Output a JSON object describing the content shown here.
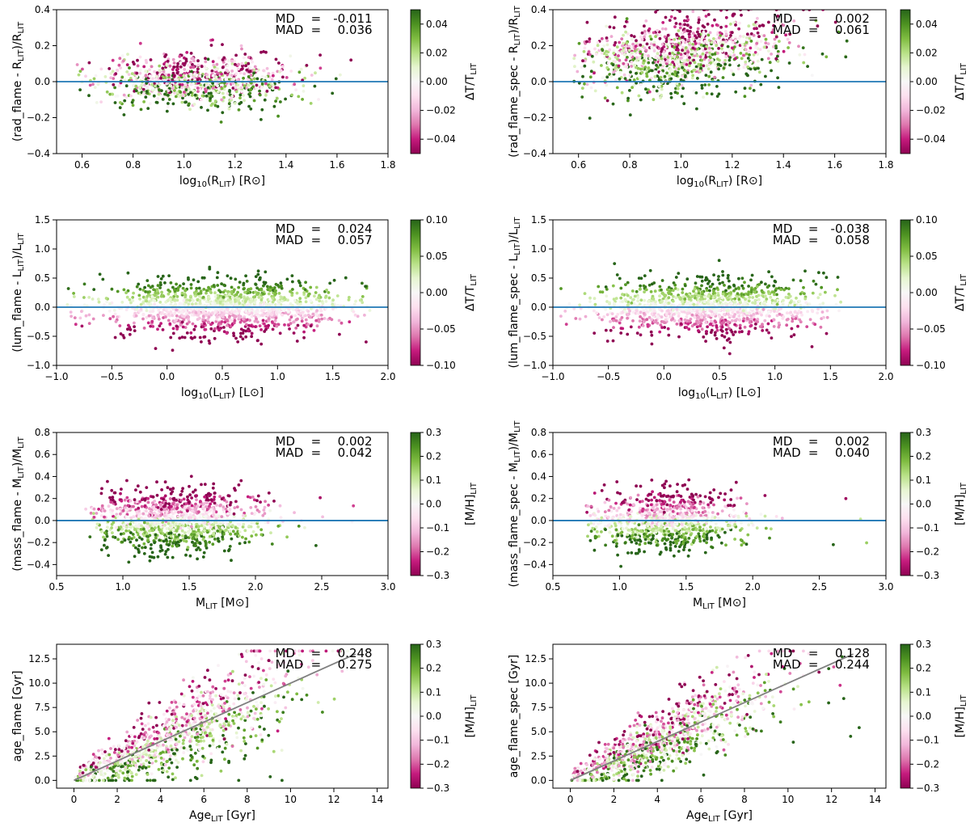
{
  "colors": {
    "reference_line": "#1f77b4",
    "identity_line": "#808080",
    "colormap": [
      "#8e0152",
      "#c51b7d",
      "#de77ae",
      "#f1b6da",
      "#fde0ef",
      "#f7f7f7",
      "#e6f5d0",
      "#b8e186",
      "#7fbc41",
      "#4d9221",
      "#276419"
    ]
  },
  "chart_data": [
    {
      "type": "scatter",
      "name": "rad-flame",
      "xlabel": "log10(R_LIT) [R_sun]",
      "xlabel_main": "log",
      "xlabel_sub": "10",
      "xlabel_rest": "(R",
      "xlabel_sub2": "LIT",
      "xlabel_tail": ") [R⊙]",
      "ylabel": "(rad_flame - R_LIT)/R_LIT",
      "ylabel_main": "(rad_flame - R",
      "ylabel_sub": "LIT",
      "ylabel_rest": ")/R",
      "ylabel_sub2": "LIT",
      "xlim": [
        0.5,
        1.8
      ],
      "ylim": [
        -0.4,
        0.4
      ],
      "xticks": [
        0.6,
        0.8,
        1.0,
        1.2,
        1.4,
        1.6,
        1.8
      ],
      "xtick_labels": [
        "0.6",
        "0.8",
        "1.0",
        "1.2",
        "1.4",
        "1.6",
        "1.8"
      ],
      "yticks": [
        -0.4,
        -0.2,
        0.0,
        0.2,
        0.4
      ],
      "ytick_labels": [
        "−0.4",
        "−0.2",
        "0.0",
        "0.2",
        "0.4"
      ],
      "reference_line": {
        "kind": "horizontal",
        "y": 0.0
      },
      "stats": {
        "md_label": "MD",
        "md_eq": "=",
        "md_value": "-0.011",
        "mad_label": "MAD",
        "mad_eq": "=",
        "mad_value": "0.036"
      },
      "colorbar": {
        "label": "ΔT/T_LIT",
        "label_main": "ΔT/T",
        "label_sub": "LIT",
        "range": [
          -0.05,
          0.05
        ],
        "ticks": [
          -0.04,
          -0.02,
          0.0,
          0.02,
          0.04
        ],
        "tick_labels": [
          "−0.04",
          "−0.02",
          "0.00",
          "0.02",
          "0.04"
        ]
      },
      "distribution": {
        "n": 900,
        "x_center": 1.05,
        "x_spread": 0.2,
        "x_range": [
          0.58,
          1.7
        ],
        "color_mode": "inverse",
        "color_spread": 0.04,
        "color_gain": 0.42,
        "base": 0.0,
        "slope": 0.0,
        "y_noise": 0.06,
        "y_range": [
          -0.4,
          0.4
        ],
        "seed": 11
      }
    },
    {
      "type": "scatter",
      "name": "rad-flame-spec",
      "xlabel": "log10(R_LIT) [R_sun]",
      "xlabel_main": "log",
      "xlabel_sub": "10",
      "xlabel_rest": "(R",
      "xlabel_sub2": "LIT",
      "xlabel_tail": ") [R⊙]",
      "ylabel": "(rad_flame_spec - R_LIT)/R_LIT",
      "ylabel_main": "(rad_flame_spec - R",
      "ylabel_sub": "LIT",
      "ylabel_rest": ")/R",
      "ylabel_sub2": "LIT",
      "xlim": [
        0.5,
        1.8
      ],
      "ylim": [
        -0.4,
        0.4
      ],
      "xticks": [
        0.6,
        0.8,
        1.0,
        1.2,
        1.4,
        1.6,
        1.8
      ],
      "xtick_labels": [
        "0.6",
        "0.8",
        "1.0",
        "1.2",
        "1.4",
        "1.6",
        "1.8"
      ],
      "yticks": [
        -0.4,
        -0.2,
        0.0,
        0.2,
        0.4
      ],
      "ytick_labels": [
        "−0.4",
        "−0.2",
        "0.0",
        "0.2",
        "0.4"
      ],
      "reference_line": {
        "kind": "horizontal",
        "y": 0.0
      },
      "stats": {
        "md_label": "MD",
        "md_eq": "=",
        "md_value": "0.002",
        "mad_label": "MAD",
        "mad_eq": "=",
        "mad_value": "0.061"
      },
      "colorbar": {
        "label": "ΔT/T_LIT",
        "label_main": "ΔT/T",
        "label_sub": "LIT",
        "range": [
          -0.05,
          0.05
        ],
        "ticks": [
          -0.04,
          -0.02,
          0.0,
          0.02,
          0.04
        ],
        "tick_labels": [
          "−0.04",
          "−0.02",
          "0.00",
          "0.02",
          "0.04"
        ]
      },
      "distribution": {
        "n": 1100,
        "x_center": 1.0,
        "x_spread": 0.2,
        "x_range": [
          0.58,
          1.65
        ],
        "color_mode": "inverse",
        "color_spread": 0.04,
        "color_gain": 0.6,
        "base": 0.15,
        "slope": 0.35,
        "y_noise": 0.08,
        "y_range": [
          -0.4,
          0.4
        ],
        "seed": 23
      }
    },
    {
      "type": "scatter",
      "name": "lum-flame",
      "xlabel": "log10(L_LIT) [L_sun]",
      "xlabel_main": "log",
      "xlabel_sub": "10",
      "xlabel_rest": "(L",
      "xlabel_sub2": "LIT",
      "xlabel_tail": ") [L⊙]",
      "ylabel": "(lum_flame - L_LIT)/L_LIT",
      "ylabel_main": "(lum_flame - L",
      "ylabel_sub": "LIT",
      "ylabel_rest": ")/L",
      "ylabel_sub2": "LIT",
      "xlim": [
        -1.0,
        2.0
      ],
      "ylim": [
        -1.0,
        1.5
      ],
      "xticks": [
        -1.0,
        -0.5,
        0.0,
        0.5,
        1.0,
        1.5,
        2.0
      ],
      "xtick_labels": [
        "−1.0",
        "−0.5",
        "0.0",
        "0.5",
        "1.0",
        "1.5",
        "2.0"
      ],
      "yticks": [
        -1.0,
        -0.5,
        0.0,
        0.5,
        1.0,
        1.5
      ],
      "ytick_labels": [
        "−1.0",
        "−0.5",
        "0.0",
        "0.5",
        "1.0",
        "1.5"
      ],
      "reference_line": {
        "kind": "horizontal",
        "y": 0.0
      },
      "stats": {
        "md_label": "MD",
        "md_eq": "=",
        "md_value": "0.024",
        "mad_label": "MAD",
        "mad_eq": "=",
        "mad_value": "0.057"
      },
      "colorbar": {
        "label": "ΔT/T_LIT",
        "label_main": "ΔT/T",
        "label_sub": "LIT",
        "range": [
          -0.1,
          0.1
        ],
        "ticks": [
          -0.1,
          -0.05,
          0.0,
          0.05,
          0.1
        ],
        "tick_labels": [
          "−0.10",
          "−0.05",
          "0.00",
          "0.05",
          "0.10"
        ]
      },
      "distribution": {
        "n": 1300,
        "x_center": 0.55,
        "x_spread": 0.55,
        "x_range": [
          -0.97,
          1.85
        ],
        "color_mode": "direct",
        "color_spread": 0.055,
        "color_gain": 4.0,
        "base": 0.0,
        "slope": 0.0,
        "y_noise": 0.05,
        "y_range": [
          -1.0,
          1.5
        ],
        "seed": 37
      }
    },
    {
      "type": "scatter",
      "name": "lum-flame-spec",
      "xlabel": "log10(L_LIT) [L_sun]",
      "xlabel_main": "log",
      "xlabel_sub": "10",
      "xlabel_rest": "(L",
      "xlabel_sub2": "LIT",
      "xlabel_tail": ") [L⊙]",
      "ylabel": "(lum_flame_spec - L_LIT)/L_LIT",
      "ylabel_main": "(lum_flame_spec - L",
      "ylabel_sub": "LIT",
      "ylabel_rest": ")/L",
      "ylabel_sub2": "LIT",
      "xlim": [
        -1.0,
        2.0
      ],
      "ylim": [
        -1.0,
        1.5
      ],
      "xticks": [
        -1.0,
        -0.5,
        0.0,
        0.5,
        1.0,
        1.5,
        2.0
      ],
      "xtick_labels": [
        "−1.0",
        "−0.5",
        "0.0",
        "0.5",
        "1.0",
        "1.5",
        "2.0"
      ],
      "yticks": [
        -1.0,
        -0.5,
        0.0,
        0.5,
        1.0,
        1.5
      ],
      "ytick_labels": [
        "−1.0",
        "−0.5",
        "0.0",
        "0.5",
        "1.0",
        "1.5"
      ],
      "reference_line": {
        "kind": "horizontal",
        "y": 0.0
      },
      "stats": {
        "md_label": "MD",
        "md_eq": "=",
        "md_value": "-0.038",
        "mad_label": "MAD",
        "mad_eq": "=",
        "mad_value": "0.058"
      },
      "colorbar": {
        "label": "ΔT/T_LIT",
        "label_main": "ΔT/T",
        "label_sub": "LIT",
        "range": [
          -0.1,
          0.1
        ],
        "ticks": [
          -0.1,
          -0.05,
          0.0,
          0.05,
          0.1
        ],
        "tick_labels": [
          "−0.10",
          "−0.05",
          "0.00",
          "0.05",
          "0.10"
        ]
      },
      "distribution": {
        "n": 1200,
        "x_center": 0.4,
        "x_spread": 0.5,
        "x_range": [
          -0.93,
          1.6
        ],
        "color_mode": "direct",
        "color_spread": 0.055,
        "color_gain": 4.0,
        "base": 0.0,
        "slope": 0.0,
        "y_noise": 0.06,
        "y_range": [
          -1.0,
          1.5
        ],
        "seed": 41
      }
    },
    {
      "type": "scatter",
      "name": "mass-flame",
      "xlabel": "M_LIT [M_sun]",
      "xlabel_main": "M",
      "xlabel_sub": "LIT",
      "xlabel_rest": " [M⊙]",
      "xlabel_sub2": "",
      "xlabel_tail": "",
      "ylabel": "(mass_flame - M_LIT)/M_LIT",
      "ylabel_main": "(mass_flame - M",
      "ylabel_sub": "LIT",
      "ylabel_rest": ")/M",
      "ylabel_sub2": "LIT",
      "xlim": [
        0.5,
        3.0
      ],
      "ylim": [
        -0.5,
        0.8
      ],
      "xticks": [
        0.5,
        1.0,
        1.5,
        2.0,
        2.5,
        3.0
      ],
      "xtick_labels": [
        "0.5",
        "1.0",
        "1.5",
        "2.0",
        "2.5",
        "3.0"
      ],
      "yticks": [
        -0.4,
        -0.2,
        0.0,
        0.2,
        0.4,
        0.6,
        0.8
      ],
      "ytick_labels": [
        "−0.4",
        "−0.2",
        "0.0",
        "0.2",
        "0.4",
        "0.6",
        "0.8"
      ],
      "reference_line": {
        "kind": "horizontal",
        "y": 0.0
      },
      "stats": {
        "md_label": "MD",
        "md_eq": "=",
        "md_value": "0.002",
        "mad_label": "MAD",
        "mad_eq": "=",
        "mad_value": "0.042"
      },
      "colorbar": {
        "label": "[M/H]_LIT",
        "label_main": "[M/H]",
        "label_sub": "LIT",
        "range": [
          -0.3,
          0.3
        ],
        "ticks": [
          -0.3,
          -0.2,
          -0.1,
          0.0,
          0.1,
          0.2,
          0.3
        ],
        "tick_labels": [
          "−0.3",
          "−0.2",
          "−0.1",
          "0.0",
          "0.1",
          "0.2",
          "0.3"
        ]
      },
      "distribution": {
        "n": 1100,
        "x_center": 1.4,
        "x_spread": 0.32,
        "x_range": [
          0.72,
          2.9
        ],
        "color_mode": "inverse",
        "color_spread": 0.2,
        "color_gain": 0.25,
        "base": 0.0,
        "slope": 0.0,
        "y_noise": 0.05,
        "y_range": [
          -0.5,
          0.8
        ],
        "seed": 53
      }
    },
    {
      "type": "scatter",
      "name": "mass-flame-spec",
      "xlabel": "M_LIT [M_sun]",
      "xlabel_main": "M",
      "xlabel_sub": "LIT",
      "xlabel_rest": " [M⊙]",
      "xlabel_sub2": "",
      "xlabel_tail": "",
      "ylabel": "(mass_flame_spec - M_LIT)/M_LIT",
      "ylabel_main": "(mass_flame_spec - M",
      "ylabel_sub": "LIT",
      "ylabel_rest": ")/M",
      "ylabel_sub2": "LIT",
      "xlim": [
        0.5,
        3.0
      ],
      "ylim": [
        -0.5,
        0.8
      ],
      "xticks": [
        0.5,
        1.0,
        1.5,
        2.0,
        2.5,
        3.0
      ],
      "xtick_labels": [
        "0.5",
        "1.0",
        "1.5",
        "2.0",
        "2.5",
        "3.0"
      ],
      "yticks": [
        -0.4,
        -0.2,
        0.0,
        0.2,
        0.4,
        0.6,
        0.8
      ],
      "ytick_labels": [
        "−0.4",
        "−0.2",
        "0.0",
        "0.2",
        "0.4",
        "0.6",
        "0.8"
      ],
      "reference_line": {
        "kind": "horizontal",
        "y": 0.0
      },
      "stats": {
        "md_label": "MD",
        "md_eq": "=",
        "md_value": "0.002",
        "mad_label": "MAD",
        "mad_eq": "=",
        "mad_value": "0.040"
      },
      "colorbar": {
        "label": "[M/H]_LIT",
        "label_main": "[M/H]",
        "label_sub": "LIT",
        "range": [
          -0.3,
          0.3
        ],
        "ticks": [
          -0.3,
          -0.2,
          -0.1,
          0.0,
          0.1,
          0.2,
          0.3
        ],
        "tick_labels": [
          "−0.3",
          "−0.2",
          "−0.1",
          "0.0",
          "0.1",
          "0.2",
          "0.3"
        ]
      },
      "distribution": {
        "n": 850,
        "x_center": 1.35,
        "x_spread": 0.28,
        "x_range": [
          0.75,
          2.9
        ],
        "color_mode": "inverse",
        "color_spread": 0.2,
        "color_gain": 0.25,
        "base": 0.0,
        "slope": 0.0,
        "y_noise": 0.05,
        "y_range": [
          -0.5,
          0.8
        ],
        "seed": 67
      }
    },
    {
      "type": "scatter",
      "name": "age-flame",
      "xlabel": "Age_LIT [Gyr]",
      "xlabel_main": "Age",
      "xlabel_sub": "LIT",
      "xlabel_rest": " [Gyr]",
      "xlabel_sub2": "",
      "xlabel_tail": "",
      "ylabel": "age_flame [Gyr]",
      "ylabel_main": "age_flame [Gyr]",
      "ylabel_sub": "",
      "ylabel_rest": "",
      "ylabel_sub2": "",
      "xlim": [
        -0.8,
        14.5
      ],
      "ylim": [
        -0.8,
        14.0
      ],
      "xticks": [
        0,
        2,
        4,
        6,
        8,
        10,
        12,
        14
      ],
      "xtick_labels": [
        "0",
        "2",
        "4",
        "6",
        "8",
        "10",
        "12",
        "14"
      ],
      "yticks": [
        0.0,
        2.5,
        5.0,
        7.5,
        10.0,
        12.5
      ],
      "ytick_labels": [
        "0.0",
        "2.5",
        "5.0",
        "7.5",
        "10.0",
        "12.5"
      ],
      "reference_line": {
        "kind": "identity",
        "from": 0.0,
        "to": 13.0
      },
      "stats": {
        "md_label": "MD",
        "md_eq": "=",
        "md_value": "0.248",
        "mad_label": "MAD",
        "mad_eq": "=",
        "mad_value": "0.275"
      },
      "colorbar": {
        "label": "[M/H]_LIT",
        "label_main": "[M/H]",
        "label_sub": "LIT",
        "range": [
          -0.3,
          0.3
        ],
        "ticks": [
          -0.3,
          -0.2,
          -0.1,
          0.0,
          0.1,
          0.2,
          0.3
        ],
        "tick_labels": [
          "−0.3",
          "−0.2",
          "−0.1",
          "0.0",
          "0.1",
          "0.2",
          "0.3"
        ]
      },
      "distribution": {
        "n": 1000,
        "x_center": 4.5,
        "x_spread": 2.8,
        "x_range": [
          0.05,
          13.5
        ],
        "color_mode": "age",
        "color_spread": 0.2,
        "color_gain": 4.0,
        "base": 0.0,
        "slope": 1.0,
        "y_noise": 0.3,
        "y_range": [
          0.0,
          13.3
        ],
        "seed": 71
      }
    },
    {
      "type": "scatter",
      "name": "age-flame-spec",
      "xlabel": "Age_LIT [Gyr]",
      "xlabel_main": "Age",
      "xlabel_sub": "LIT",
      "xlabel_rest": " [Gyr]",
      "xlabel_sub2": "",
      "xlabel_tail": "",
      "ylabel": "age_flame_spec [Gyr]",
      "ylabel_main": "age_flame_spec [Gyr]",
      "ylabel_sub": "",
      "ylabel_rest": "",
      "ylabel_sub2": "",
      "xlim": [
        -0.8,
        14.5
      ],
      "ylim": [
        -0.8,
        14.0
      ],
      "xticks": [
        0,
        2,
        4,
        6,
        8,
        10,
        12,
        14
      ],
      "xtick_labels": [
        "0",
        "2",
        "4",
        "6",
        "8",
        "10",
        "12",
        "14"
      ],
      "yticks": [
        0.0,
        2.5,
        5.0,
        7.5,
        10.0,
        12.5
      ],
      "ytick_labels": [
        "0.0",
        "2.5",
        "5.0",
        "7.5",
        "10.0",
        "12.5"
      ],
      "reference_line": {
        "kind": "identity",
        "from": 0.0,
        "to": 13.0
      },
      "stats": {
        "md_label": "MD",
        "md_eq": "=",
        "md_value": "0.128",
        "mad_label": "MAD",
        "mad_eq": "=",
        "mad_value": "0.244"
      },
      "colorbar": {
        "label": "[M/H]_LIT",
        "label_main": "[M/H]",
        "label_sub": "LIT",
        "range": [
          -0.3,
          0.3
        ],
        "ticks": [
          -0.3,
          -0.2,
          -0.1,
          0.0,
          0.1,
          0.2,
          0.3
        ],
        "tick_labels": [
          "−0.3",
          "−0.2",
          "−0.1",
          "0.0",
          "0.1",
          "0.2",
          "0.3"
        ]
      },
      "distribution": {
        "n": 950,
        "x_center": 4.0,
        "x_spread": 2.5,
        "x_range": [
          0.05,
          13.6
        ],
        "color_mode": "age",
        "color_spread": 0.2,
        "color_gain": 3.0,
        "base": 0.0,
        "slope": 1.0,
        "y_noise": 0.22,
        "y_range": [
          0.0,
          13.3
        ],
        "seed": 89
      }
    }
  ]
}
